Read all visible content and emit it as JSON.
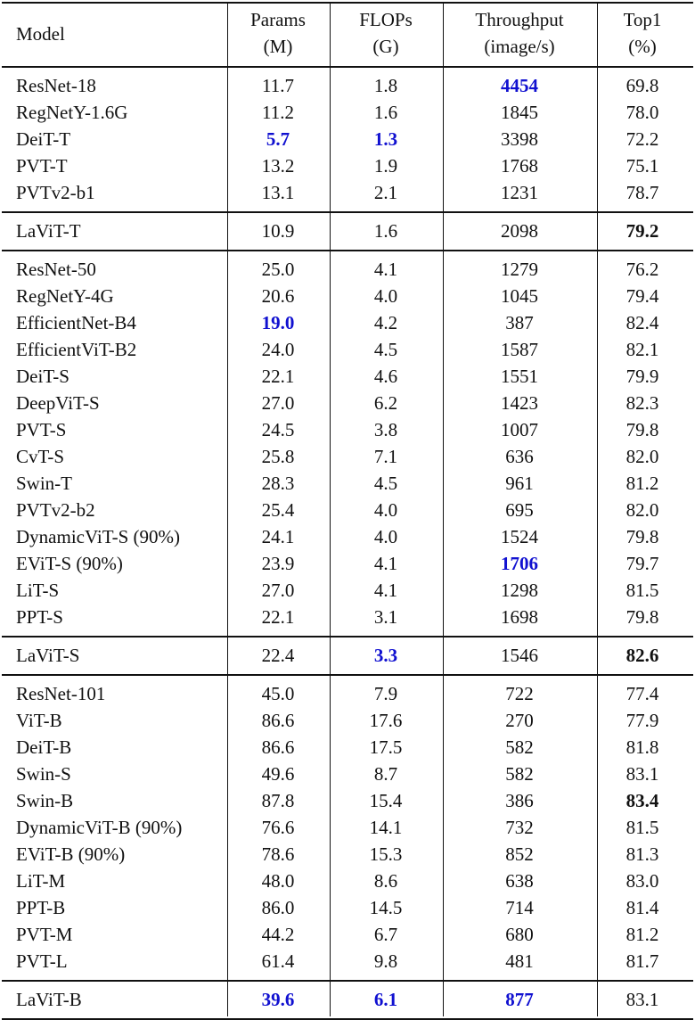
{
  "table": {
    "header": [
      [
        "Model"
      ],
      [
        "Params",
        "(M)"
      ],
      [
        "FLOPs",
        "(G)"
      ],
      [
        "Throughput",
        "(image/s)"
      ],
      [
        "Top1",
        "(%)"
      ]
    ],
    "groups": [
      [
        [
          "ResNet-18",
          "11.7",
          "1.8",
          "4454",
          "69.8"
        ],
        [
          "RegNetY-1.6G",
          "11.2",
          "1.6",
          "1845",
          "78.0"
        ],
        [
          "DeiT-T",
          "5.7",
          "1.3",
          "3398",
          "72.2"
        ],
        [
          "PVT-T",
          "13.2",
          "1.9",
          "1768",
          "75.1"
        ],
        [
          "PVTv2-b1",
          "13.1",
          "2.1",
          "1231",
          "78.7"
        ]
      ],
      [
        [
          "LaViT-T",
          "10.9",
          "1.6",
          "2098",
          "79.2"
        ]
      ],
      [
        [
          "ResNet-50",
          "25.0",
          "4.1",
          "1279",
          "76.2"
        ],
        [
          "RegNetY-4G",
          "20.6",
          "4.0",
          "1045",
          "79.4"
        ],
        [
          "EfficientNet-B4",
          "19.0",
          "4.2",
          "387",
          "82.4"
        ],
        [
          "EfficientViT-B2",
          "24.0",
          "4.5",
          "1587",
          "82.1"
        ],
        [
          "DeiT-S",
          "22.1",
          "4.6",
          "1551",
          "79.9"
        ],
        [
          "DeepViT-S",
          "27.0",
          "6.2",
          "1423",
          "82.3"
        ],
        [
          "PVT-S",
          "24.5",
          "3.8",
          "1007",
          "79.8"
        ],
        [
          "CvT-S",
          "25.8",
          "7.1",
          "636",
          "82.0"
        ],
        [
          "Swin-T",
          "28.3",
          "4.5",
          "961",
          "81.2"
        ],
        [
          "PVTv2-b2",
          "25.4",
          "4.0",
          "695",
          "82.0"
        ],
        [
          "DynamicViT-S (90%)",
          "24.1",
          "4.0",
          "1524",
          "79.8"
        ],
        [
          "EViT-S (90%)",
          "23.9",
          "4.1",
          "1706",
          "79.7"
        ],
        [
          "LiT-S",
          "27.0",
          "4.1",
          "1298",
          "81.5"
        ],
        [
          "PPT-S",
          "22.1",
          "3.1",
          "1698",
          "79.8"
        ]
      ],
      [
        [
          "LaViT-S",
          "22.4",
          "3.3",
          "1546",
          "82.6"
        ]
      ],
      [
        [
          "ResNet-101",
          "45.0",
          "7.9",
          "722",
          "77.4"
        ],
        [
          "ViT-B",
          "86.6",
          "17.6",
          "270",
          "77.9"
        ],
        [
          "DeiT-B",
          "86.6",
          "17.5",
          "582",
          "81.8"
        ],
        [
          "Swin-S",
          "49.6",
          "8.7",
          "582",
          "83.1"
        ],
        [
          "Swin-B",
          "87.8",
          "15.4",
          "386",
          "83.4"
        ],
        [
          "DynamicViT-B (90%)",
          "76.6",
          "14.1",
          "732",
          "81.5"
        ],
        [
          "EViT-B (90%)",
          "78.6",
          "15.3",
          "852",
          "81.3"
        ],
        [
          "LiT-M",
          "48.0",
          "8.6",
          "638",
          "83.0"
        ],
        [
          "PPT-B",
          "86.0",
          "14.5",
          "714",
          "81.4"
        ],
        [
          "PVT-M",
          "44.2",
          "6.7",
          "680",
          "81.2"
        ],
        [
          "PVT-L",
          "61.4",
          "9.8",
          "481",
          "81.7"
        ]
      ],
      [
        [
          "LaViT-B",
          "39.6",
          "6.1",
          "877",
          "83.1"
        ]
      ]
    ]
  }
}
